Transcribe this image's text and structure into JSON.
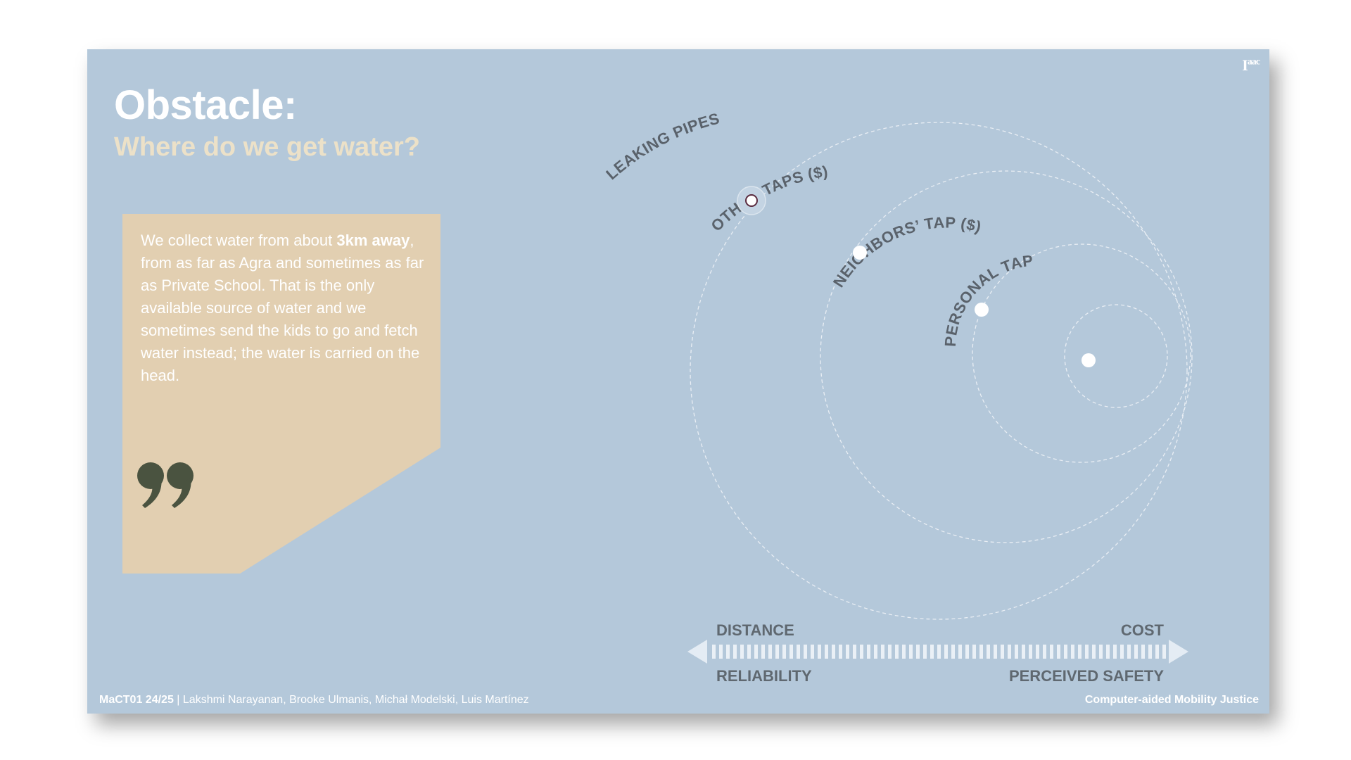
{
  "slide": {
    "logo": "I",
    "logo_sup": "aac",
    "title": "Obstacle:",
    "subtitle": "Where do we get water?",
    "quote": {
      "part1": "We collect water from about ",
      "bold": "3km away",
      "part2": ", from as far as Agra and sometimes as far as Private School. That is the only available source of water and we sometimes send the kids to go and fetch water instead; the water is carried on the head."
    },
    "footer_left_bold": "MaCT01 24/25",
    "footer_left_sep": " | ",
    "footer_left": "Lakshmi Narayanan, Brooke Ulmanis, Michał Modelski, Luis Martínez",
    "footer_right": "Computer-aided Mobility Justice"
  },
  "diagram": {
    "rings": [
      {
        "label": "LEAKING PIPES"
      },
      {
        "label": "OTHER TAPS ($)"
      },
      {
        "label": "NEIGHBORS’ TAP ($)"
      },
      {
        "label": "PERSONAL TAP"
      }
    ],
    "axis": {
      "top_left": "DISTANCE",
      "top_right": "COST",
      "bottom_left": "RELIABILITY",
      "bottom_right": "PERCEIVED SAFETY"
    },
    "colors": {
      "background": "#b4c8da",
      "ring_stroke": "#e9eef4",
      "label": "#5a626b",
      "dot_highlight": "#5a2a3e"
    }
  }
}
